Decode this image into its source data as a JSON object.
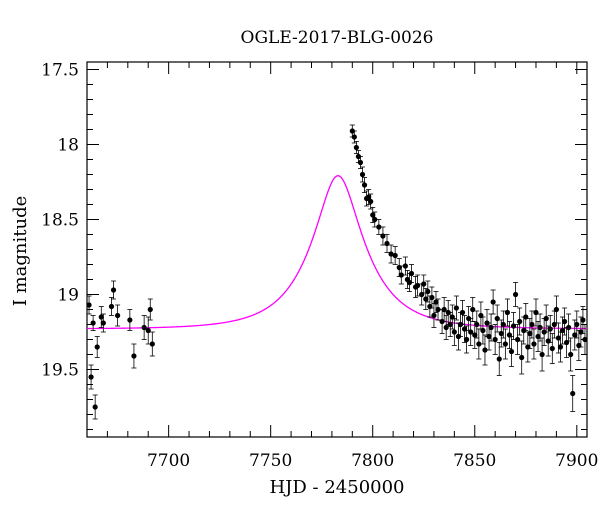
{
  "chart_data": {
    "type": "scatter",
    "title": "OGLE-2017-BLG-0026",
    "xlabel": "HJD - 2450000",
    "ylabel": "I magnitude",
    "xlim": [
      7660,
      7905
    ],
    "ylim": [
      19.95,
      17.45
    ],
    "y_inverted": true,
    "grid": false,
    "x_ticks": [
      7700,
      7750,
      7800,
      7850,
      7900
    ],
    "x_tick_labels": [
      "7700",
      "7750",
      "7800",
      "7850",
      "7900"
    ],
    "y_ticks": [
      17.5,
      18,
      18.5,
      19,
      19.5
    ],
    "y_tick_labels": [
      "17.5",
      "18",
      "18.5",
      "19",
      "19.5"
    ],
    "series": [
      {
        "kind": "points",
        "color": "#000000",
        "points": [
          [
            7661,
            19.07,
            0.06
          ],
          [
            7662,
            19.55,
            0.08
          ],
          [
            7663,
            19.19,
            0.05
          ],
          [
            7664,
            19.75,
            0.08
          ],
          [
            7665,
            19.35,
            0.07
          ],
          [
            7667,
            19.15,
            0.07
          ],
          [
            7668,
            19.19,
            0.06
          ],
          [
            7672,
            19.08,
            0.06
          ],
          [
            7673,
            18.97,
            0.06
          ],
          [
            7675,
            19.14,
            0.07
          ],
          [
            7681,
            19.17,
            0.07
          ],
          [
            7683,
            19.41,
            0.08
          ],
          [
            7688,
            19.22,
            0.08
          ],
          [
            7690,
            19.24,
            0.09
          ],
          [
            7691,
            19.1,
            0.07
          ],
          [
            7692,
            19.33,
            0.08
          ],
          [
            7790,
            17.91,
            0.04
          ],
          [
            7791,
            17.95,
            0.04
          ],
          [
            7792,
            18.02,
            0.04
          ],
          [
            7793,
            18.08,
            0.04
          ],
          [
            7794,
            18.12,
            0.04
          ],
          [
            7795,
            18.2,
            0.05
          ],
          [
            7796,
            18.27,
            0.05
          ],
          [
            7797,
            18.36,
            0.05
          ],
          [
            7798,
            18.35,
            0.05
          ],
          [
            7799,
            18.38,
            0.05
          ],
          [
            7800,
            18.47,
            0.05
          ],
          [
            7801,
            18.5,
            0.05
          ],
          [
            7803,
            18.55,
            0.05
          ],
          [
            7805,
            18.61,
            0.06
          ],
          [
            7807,
            18.66,
            0.06
          ],
          [
            7809,
            18.73,
            0.06
          ],
          [
            7811,
            18.74,
            0.06
          ],
          [
            7813,
            18.82,
            0.06
          ],
          [
            7814,
            18.87,
            0.06
          ],
          [
            7816,
            18.81,
            0.06
          ],
          [
            7817,
            18.9,
            0.06
          ],
          [
            7818,
            18.92,
            0.06
          ],
          [
            7819,
            18.86,
            0.06
          ],
          [
            7821,
            18.95,
            0.07
          ],
          [
            7822,
            18.94,
            0.07
          ],
          [
            7824,
            19.0,
            0.07
          ],
          [
            7825,
            18.93,
            0.06
          ],
          [
            7826,
            19.03,
            0.07
          ],
          [
            7827,
            18.98,
            0.07
          ],
          [
            7828,
            19.08,
            0.07
          ],
          [
            7829,
            19.02,
            0.07
          ],
          [
            7830,
            19.14,
            0.08
          ],
          [
            7831,
            19.05,
            0.07
          ],
          [
            7832,
            19.1,
            0.07
          ],
          [
            7834,
            19.18,
            0.08
          ],
          [
            7835,
            19.1,
            0.08
          ],
          [
            7836,
            19.22,
            0.08
          ],
          [
            7837,
            19.12,
            0.08
          ],
          [
            7838,
            19.2,
            0.08
          ],
          [
            7839,
            19.15,
            0.08
          ],
          [
            7840,
            19.25,
            0.09
          ],
          [
            7841,
            19.09,
            0.08
          ],
          [
            7842,
            19.28,
            0.09
          ],
          [
            7843,
            19.2,
            0.08
          ],
          [
            7844,
            19.12,
            0.08
          ],
          [
            7845,
            19.23,
            0.09
          ],
          [
            7846,
            19.3,
            0.09
          ],
          [
            7847,
            19.16,
            0.08
          ],
          [
            7848,
            19.25,
            0.09
          ],
          [
            7849,
            19.1,
            0.08
          ],
          [
            7850,
            19.27,
            0.09
          ],
          [
            7851,
            19.2,
            0.09
          ],
          [
            7852,
            19.33,
            0.1
          ],
          [
            7853,
            19.14,
            0.09
          ],
          [
            7854,
            19.24,
            0.09
          ],
          [
            7855,
            19.37,
            0.1
          ],
          [
            7856,
            19.19,
            0.09
          ],
          [
            7857,
            19.28,
            0.09
          ],
          [
            7858,
            19.22,
            0.09
          ],
          [
            7859,
            19.05,
            0.08
          ],
          [
            7860,
            19.3,
            0.1
          ],
          [
            7861,
            19.16,
            0.09
          ],
          [
            7862,
            19.43,
            0.11
          ],
          [
            7863,
            19.26,
            0.09
          ],
          [
            7864,
            19.2,
            0.09
          ],
          [
            7865,
            19.33,
            0.1
          ],
          [
            7866,
            19.12,
            0.09
          ],
          [
            7867,
            19.27,
            0.09
          ],
          [
            7868,
            19.38,
            0.1
          ],
          [
            7869,
            19.21,
            0.09
          ],
          [
            7870,
            19.0,
            0.08
          ],
          [
            7871,
            19.3,
            0.1
          ],
          [
            7872,
            19.18,
            0.09
          ],
          [
            7873,
            19.42,
            0.11
          ],
          [
            7874,
            19.24,
            0.09
          ],
          [
            7875,
            19.15,
            0.09
          ],
          [
            7876,
            19.35,
            0.1
          ],
          [
            7877,
            19.26,
            0.1
          ],
          [
            7878,
            19.2,
            0.09
          ],
          [
            7879,
            19.33,
            0.1
          ],
          [
            7880,
            19.12,
            0.09
          ],
          [
            7881,
            19.28,
            0.1
          ],
          [
            7882,
            19.22,
            0.09
          ],
          [
            7883,
            19.4,
            0.11
          ],
          [
            7884,
            19.25,
            0.09
          ],
          [
            7885,
            19.16,
            0.09
          ],
          [
            7886,
            19.31,
            0.1
          ],
          [
            7887,
            19.23,
            0.09
          ],
          [
            7888,
            19.36,
            0.1
          ],
          [
            7889,
            19.2,
            0.09
          ],
          [
            7890,
            19.1,
            0.09
          ],
          [
            7891,
            19.29,
            0.1
          ],
          [
            7892,
            19.35,
            0.1
          ],
          [
            7893,
            19.24,
            0.09
          ],
          [
            7894,
            19.18,
            0.09
          ],
          [
            7895,
            19.32,
            0.1
          ],
          [
            7896,
            19.22,
            0.09
          ],
          [
            7897,
            19.4,
            0.11
          ],
          [
            7898,
            19.66,
            0.12
          ],
          [
            7899,
            19.27,
            0.1
          ],
          [
            7900,
            19.2,
            0.09
          ],
          [
            7901,
            19.34,
            0.1
          ],
          [
            7902,
            19.25,
            0.1
          ],
          [
            7903,
            19.17,
            0.09
          ],
          [
            7904,
            19.3,
            0.1
          ]
        ]
      },
      {
        "kind": "model",
        "color": "#ff00ff",
        "t0": 7783,
        "u0": 0.37,
        "tE": 26,
        "fs": 0.85,
        "baseline": 19.23
      }
    ]
  }
}
